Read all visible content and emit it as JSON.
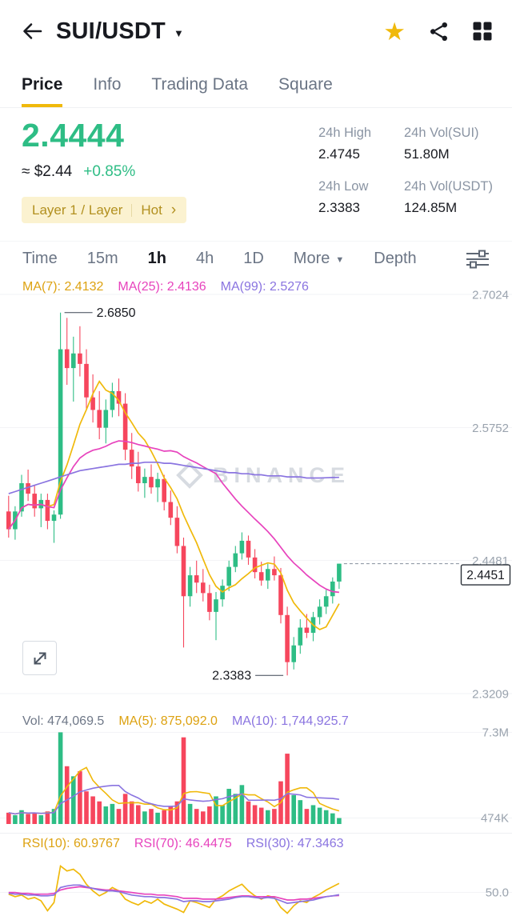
{
  "header": {
    "title": "SUI/USDT"
  },
  "icons": {
    "caret_down": "▼",
    "chevron_right": "›",
    "star": "★"
  },
  "tabs": {
    "items": [
      {
        "label": "Price",
        "active": true
      },
      {
        "label": "Info",
        "active": false
      },
      {
        "label": "Trading Data",
        "active": false
      },
      {
        "label": "Square",
        "active": false
      }
    ]
  },
  "ticker": {
    "price": "2.4444",
    "approx": "≈ $2.44",
    "change": "+0.85%",
    "tag_left": "Layer 1 / Layer",
    "tag_right": "Hot"
  },
  "stats": {
    "items": [
      {
        "label": "24h High",
        "value": "2.4745"
      },
      {
        "label": "24h Vol(SUI)",
        "value": "51.80M"
      },
      {
        "label": "24h Low",
        "value": "2.3383"
      },
      {
        "label": "24h Vol(USDT)",
        "value": "124.85M"
      }
    ]
  },
  "toolbar": {
    "items": [
      "Time",
      "15m",
      "1h",
      "4h",
      "1D"
    ],
    "active": "1h",
    "more_label": "More",
    "depth_label": "Depth"
  },
  "legends": {
    "price_legend": [
      {
        "text": "MA(7): 2.4132",
        "color": "#dda211"
      },
      {
        "text": "MA(25): 2.4136",
        "color": "#e743bd"
      },
      {
        "text": "MA(99): 2.5276",
        "color": "#8a74e0"
      }
    ],
    "volume_legend": [
      {
        "text": "Vol: 474,069.5",
        "color": "#6f7888"
      },
      {
        "text": "MA(5): 875,092.0",
        "color": "#dda211"
      },
      {
        "text": "MA(10): 1,744,925.7",
        "color": "#8a74e0"
      }
    ],
    "rsi_legend": [
      {
        "text": "RSI(10): 60.9767",
        "color": "#dda211"
      },
      {
        "text": "RSI(70): 46.4475",
        "color": "#e743bd"
      },
      {
        "text": "RSI(30): 47.3463",
        "color": "#8a74e0"
      }
    ]
  },
  "watermark": {
    "text": "BINANCE"
  },
  "chart_data": {
    "type": "candlestick",
    "symbol": "SUI/USDT",
    "interval": "1h",
    "price_axis_labels": [
      "2.7024",
      "2.5752",
      "2.4481",
      "2.3209"
    ],
    "last_price_label": "2.4451",
    "high_annotation": "2.6850",
    "low_annotation": "2.3383",
    "colors": {
      "up": "#2ebd85",
      "down": "#f6465d",
      "ma7": "#f0b90b",
      "ma25": "#e743bd",
      "ma99": "#8a74e0",
      "grid": "#f2f3f6",
      "axis_text": "#9aa3ae"
    },
    "candles": [
      [
        2.495,
        2.51,
        2.47,
        2.478
      ],
      [
        2.478,
        2.5,
        2.468,
        2.495
      ],
      [
        2.495,
        2.53,
        2.49,
        2.522
      ],
      [
        2.522,
        2.535,
        2.505,
        2.512
      ],
      [
        2.512,
        2.52,
        2.49,
        2.498
      ],
      [
        2.498,
        2.512,
        2.48,
        2.506
      ],
      [
        2.506,
        2.512,
        2.478,
        2.486
      ],
      [
        2.486,
        2.496,
        2.465,
        2.492
      ],
      [
        2.492,
        2.685,
        2.488,
        2.65
      ],
      [
        2.65,
        2.68,
        2.616,
        2.632
      ],
      [
        2.632,
        2.662,
        2.6,
        2.646
      ],
      [
        2.646,
        2.672,
        2.624,
        2.636
      ],
      [
        2.636,
        2.65,
        2.592,
        2.604
      ],
      [
        2.604,
        2.626,
        2.58,
        2.592
      ],
      [
        2.592,
        2.61,
        2.564,
        2.575
      ],
      [
        2.575,
        2.602,
        2.56,
        2.592
      ],
      [
        2.592,
        2.618,
        2.585,
        2.61
      ],
      [
        2.61,
        2.622,
        2.586,
        2.598
      ],
      [
        2.598,
        2.608,
        2.544,
        2.554
      ],
      [
        2.554,
        2.57,
        2.526,
        2.538
      ],
      [
        2.538,
        2.552,
        2.514,
        2.522
      ],
      [
        2.522,
        2.536,
        2.508,
        2.528
      ],
      [
        2.528,
        2.54,
        2.512,
        2.518
      ],
      [
        2.518,
        2.532,
        2.504,
        2.526
      ],
      [
        2.526,
        2.53,
        2.496,
        2.504
      ],
      [
        2.504,
        2.515,
        2.482,
        2.489
      ],
      [
        2.489,
        2.5,
        2.455,
        2.462
      ],
      [
        2.462,
        2.47,
        2.365,
        2.414
      ],
      [
        2.414,
        2.442,
        2.404,
        2.434
      ],
      [
        2.434,
        2.448,
        2.417,
        2.427
      ],
      [
        2.427,
        2.44,
        2.409,
        2.417
      ],
      [
        2.417,
        2.425,
        2.391,
        2.399
      ],
      [
        2.399,
        2.418,
        2.372,
        2.411
      ],
      [
        2.411,
        2.43,
        2.404,
        2.424
      ],
      [
        2.424,
        2.448,
        2.419,
        2.442
      ],
      [
        2.442,
        2.462,
        2.437,
        2.455
      ],
      [
        2.455,
        2.475,
        2.449,
        2.467
      ],
      [
        2.467,
        2.472,
        2.444,
        2.451
      ],
      [
        2.451,
        2.459,
        2.431,
        2.437
      ],
      [
        2.437,
        2.447,
        2.424,
        2.429
      ],
      [
        2.429,
        2.445,
        2.421,
        2.44
      ],
      [
        2.44,
        2.452,
        2.429,
        2.434
      ],
      [
        2.434,
        2.441,
        2.388,
        2.396
      ],
      [
        2.396,
        2.404,
        2.3383,
        2.351
      ],
      [
        2.351,
        2.375,
        2.344,
        2.367
      ],
      [
        2.367,
        2.392,
        2.359,
        2.384
      ],
      [
        2.384,
        2.397,
        2.374,
        2.379
      ],
      [
        2.379,
        2.399,
        2.371,
        2.394
      ],
      [
        2.394,
        2.411,
        2.387,
        2.404
      ],
      [
        2.404,
        2.42,
        2.397,
        2.414
      ],
      [
        2.414,
        2.432,
        2.407,
        2.428
      ],
      [
        2.428,
        2.4451,
        2.421,
        2.4451
      ]
    ],
    "ma99": [
      2.512,
      2.514,
      2.516,
      2.518,
      2.52,
      2.522,
      2.524,
      2.526,
      2.528,
      2.53,
      2.532,
      2.534,
      2.535,
      2.536,
      2.537,
      2.538,
      2.539,
      2.54,
      2.54,
      2.541,
      2.541,
      2.542,
      2.542,
      2.542,
      2.541,
      2.541,
      2.54,
      2.539,
      2.538,
      2.537,
      2.536,
      2.535,
      2.534,
      2.533,
      2.532,
      2.532,
      2.531,
      2.531,
      2.53,
      2.53,
      2.529,
      2.529,
      2.529,
      2.528,
      2.528,
      2.528,
      2.527,
      2.527,
      2.527,
      2.5272,
      2.5274,
      2.5276
    ],
    "volumes": [
      0.9,
      0.7,
      1.1,
      0.8,
      0.9,
      0.7,
      1.0,
      1.2,
      7.3,
      4.6,
      3.8,
      4.2,
      2.6,
      2.2,
      1.8,
      1.4,
      1.6,
      1.2,
      2.4,
      1.8,
      1.5,
      1.0,
      1.2,
      0.9,
      1.1,
      1.4,
      1.8,
      6.9,
      1.6,
      1.2,
      1.0,
      1.4,
      2.2,
      1.5,
      2.8,
      2.4,
      3.1,
      1.8,
      1.5,
      1.3,
      1.1,
      1.2,
      3.4,
      5.6,
      2.3,
      1.9,
      1.2,
      1.5,
      1.3,
      1.1,
      0.85,
      0.474
    ],
    "volume_axis": [
      {
        "label": "7.3M",
        "value": 7.3
      },
      {
        "label": "474K",
        "value": 0.474
      }
    ],
    "rsi": {
      "axis_label": "50.0",
      "axis_value": 50,
      "rsi10": [
        48,
        45,
        47,
        42,
        44,
        40,
        28,
        38,
        82,
        76,
        78,
        72,
        60,
        52,
        46,
        50,
        56,
        52,
        42,
        38,
        35,
        40,
        37,
        42,
        36,
        33,
        30,
        26,
        40,
        38,
        35,
        32,
        42,
        46,
        52,
        56,
        60,
        52,
        46,
        42,
        46,
        44,
        32,
        25,
        34,
        40,
        38,
        44,
        48,
        53,
        57,
        61
      ],
      "rsi70": [
        50,
        50,
        49,
        49,
        48,
        48,
        48,
        49,
        53,
        55,
        56,
        57,
        56,
        55,
        54,
        53,
        53,
        52,
        51,
        50,
        49,
        48,
        48,
        47,
        47,
        46,
        45,
        43,
        43,
        43,
        42,
        42,
        42,
        43,
        44,
        45,
        46,
        46,
        45,
        45,
        45,
        45,
        43,
        41,
        41,
        42,
        42,
        43,
        44,
        45,
        46,
        46.4
      ],
      "rsi30": [
        49,
        48,
        48,
        47,
        47,
        46,
        46,
        47,
        56,
        58,
        59,
        59,
        57,
        55,
        53,
        52,
        52,
        51,
        49,
        47,
        46,
        45,
        45,
        44,
        44,
        43,
        42,
        39,
        40,
        40,
        39,
        39,
        40,
        41,
        42,
        44,
        45,
        45,
        44,
        43,
        44,
        43,
        40,
        37,
        38,
        39,
        40,
        41,
        43,
        45,
        46,
        47.3
      ]
    }
  }
}
